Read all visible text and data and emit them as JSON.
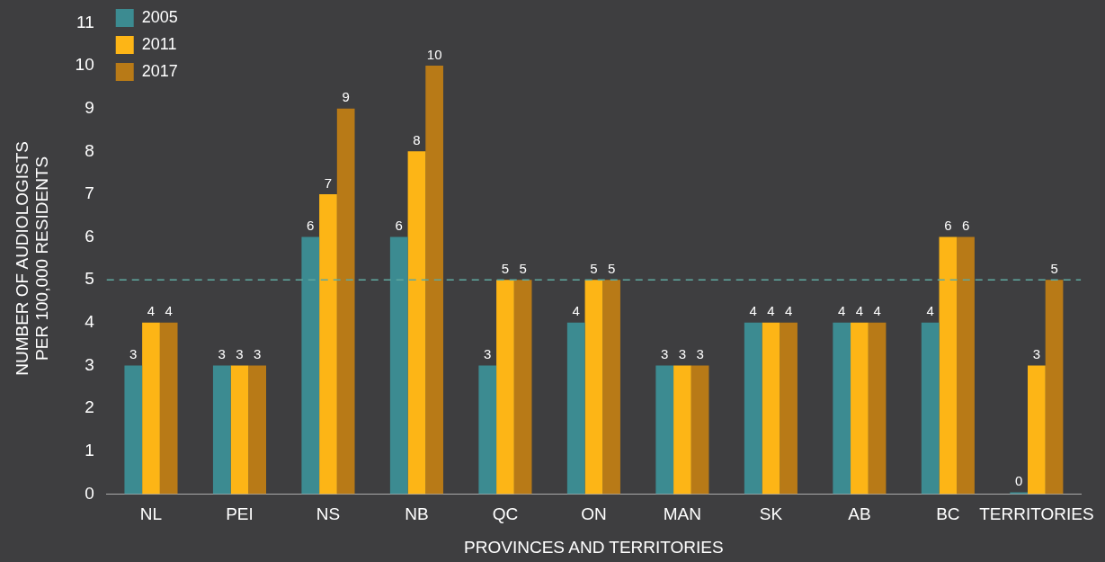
{
  "chart_data": {
    "type": "bar",
    "xlabel": "PROVINCES AND TERRITORIES",
    "ylabel": "NUMBER OF AUDIOLOGISTS\nPER 100,000 RESIDENTS",
    "categories": [
      "NL",
      "PEI",
      "NS",
      "NB",
      "QC",
      "ON",
      "MAN",
      "SK",
      "AB",
      "BC",
      "TERRITORIES"
    ],
    "series": [
      {
        "name": "2005",
        "color": "#3c8b91",
        "values": [
          3,
          3,
          6,
          6,
          3,
          4,
          3,
          4,
          4,
          4,
          0
        ]
      },
      {
        "name": "2011",
        "color": "#fdb516",
        "values": [
          4,
          3,
          7,
          8,
          5,
          5,
          3,
          4,
          4,
          6,
          3
        ]
      },
      {
        "name": "2017",
        "color": "#b87a17",
        "values": [
          4,
          3,
          9,
          10,
          5,
          5,
          3,
          4,
          4,
          6,
          5
        ]
      }
    ],
    "ylim": [
      0,
      11
    ],
    "yticks": [
      0,
      1,
      2,
      3,
      4,
      5,
      6,
      7,
      8,
      9,
      10,
      11
    ],
    "grid": false,
    "legend": "top left",
    "data_labels": true,
    "ref_lines": [
      {
        "axis": "y",
        "value": 5,
        "color": "#5fa8a0",
        "line_style": "dashed"
      }
    ]
  }
}
